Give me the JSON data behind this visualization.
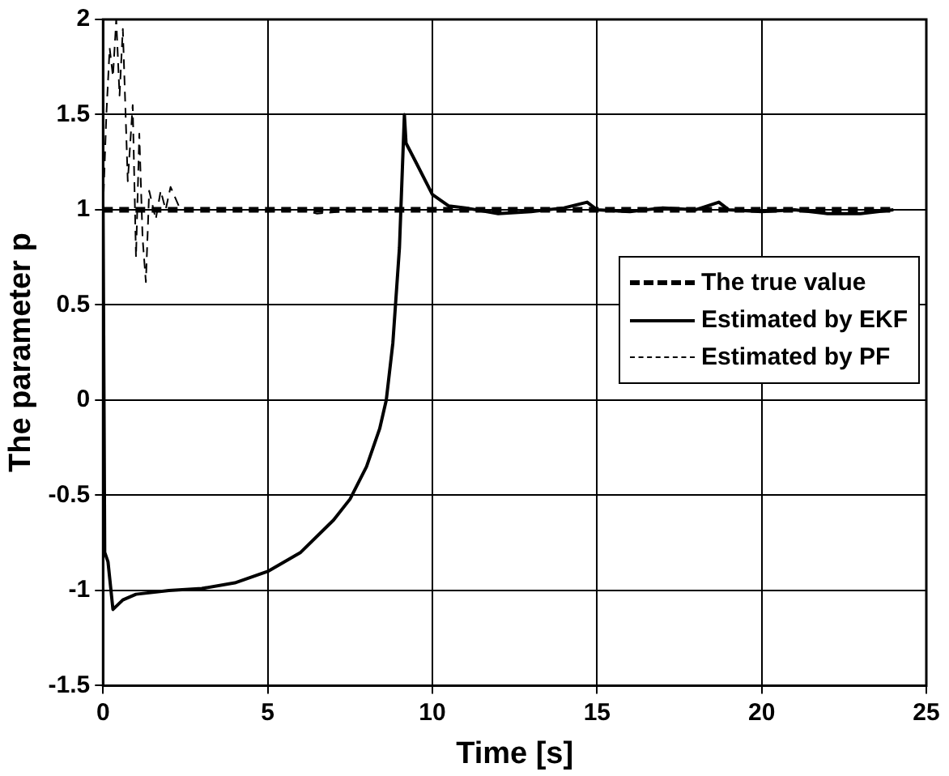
{
  "chart_data": {
    "type": "line",
    "xlabel": "Time [s]",
    "ylabel": "The parameter p",
    "xlim": [
      0,
      25
    ],
    "xticks": [
      0,
      5,
      10,
      15,
      20,
      25
    ],
    "ylim": [
      -1.5,
      2
    ],
    "yticks": [
      -1.5,
      -1,
      -0.5,
      0,
      0.5,
      1,
      1.5,
      2
    ],
    "grid": true,
    "legend": "right",
    "marker": "none",
    "series": [
      {
        "name": "The true value",
        "color": "#000000",
        "line_style": "dashed",
        "x": [
          0,
          24
        ],
        "values": [
          1,
          1
        ]
      },
      {
        "name": "Estimated by EKF",
        "color": "#000000",
        "line_style": "solid",
        "x": [
          0,
          0.05,
          0.15,
          0.3,
          0.6,
          1,
          2,
          3,
          4,
          5,
          6,
          7,
          7.5,
          8,
          8.4,
          8.6,
          8.8,
          9,
          9.15,
          9.2,
          9.5,
          10,
          10.5,
          11,
          12,
          13,
          14,
          14.7,
          15,
          16,
          17,
          18,
          18.7,
          19,
          20,
          21,
          22,
          23,
          24
        ],
        "values": [
          1,
          -0.8,
          -0.85,
          -1.1,
          -1.05,
          -1.02,
          -1.0,
          -0.99,
          -0.96,
          -0.9,
          -0.8,
          -0.63,
          -0.52,
          -0.35,
          -0.15,
          0,
          0.3,
          0.8,
          1.5,
          1.35,
          1.25,
          1.08,
          1.02,
          1.01,
          0.98,
          0.99,
          1.01,
          1.04,
          1.0,
          0.99,
          1.01,
          1.0,
          1.04,
          1.0,
          0.99,
          1.0,
          0.98,
          0.98,
          1.0
        ]
      },
      {
        "name": "Estimated by PF",
        "color": "#000000",
        "line_style": "dashed",
        "x": [
          0,
          0.1,
          0.2,
          0.3,
          0.4,
          0.5,
          0.6,
          0.75,
          0.9,
          1.0,
          1.1,
          1.2,
          1.3,
          1.4,
          1.6,
          1.75,
          1.9,
          2.05,
          2.3,
          2.6,
          4,
          5,
          6,
          6.5,
          8,
          24
        ],
        "values": [
          1,
          1.5,
          1.85,
          1.7,
          2.0,
          1.6,
          1.95,
          1.15,
          1.55,
          0.75,
          1.4,
          0.85,
          0.62,
          1.1,
          0.95,
          1.1,
          1.0,
          1.12,
          1.02,
          1.0,
          1.0,
          0.99,
          1.0,
          0.98,
          1.0,
          1.0
        ]
      }
    ]
  }
}
